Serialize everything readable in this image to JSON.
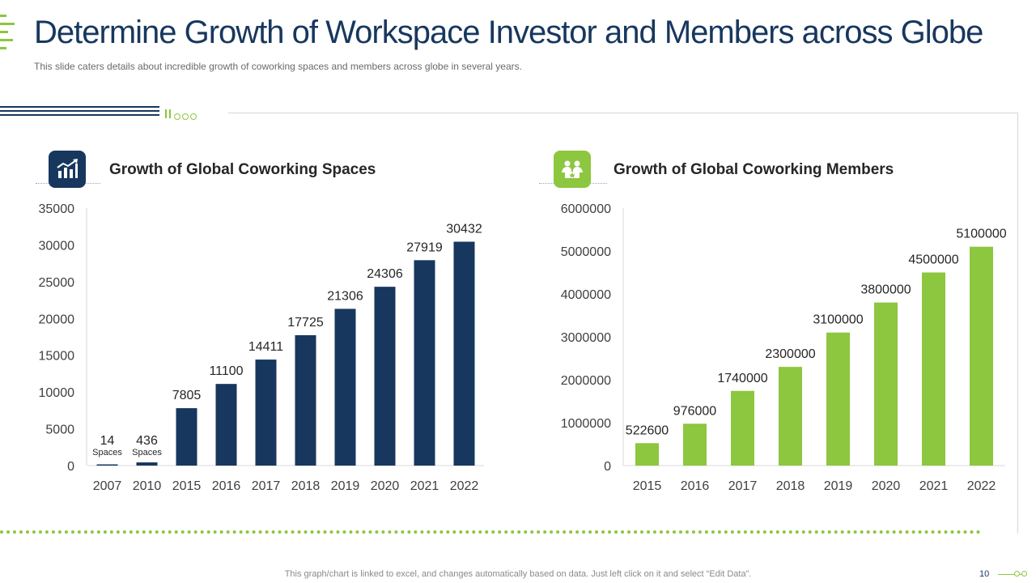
{
  "header": {
    "title": "Determine Growth of Workspace Investor and Members across Globe",
    "subtitle": "This slide caters details about incredible growth of coworking spaces and members across globe in several years."
  },
  "footer": {
    "note": "This graph/chart is linked to excel, and changes automatically based on data. Just left click on it and select “Edit Data”.",
    "page_number": "10"
  },
  "icons": {
    "left": "bar-chart-growth-icon",
    "right": "team-members-icon"
  },
  "colors": {
    "navy": "#17375e",
    "green": "#8dc63f"
  },
  "chart_data": [
    {
      "type": "bar",
      "title": "Growth of Global Coworking Spaces",
      "categories": [
        "2007",
        "2010",
        "2015",
        "2016",
        "2017",
        "2018",
        "2019",
        "2020",
        "2021",
        "2022"
      ],
      "values": [
        14,
        436,
        7805,
        11100,
        14411,
        17725,
        21306,
        24306,
        27919,
        30432
      ],
      "data_labels": [
        "14",
        "436",
        "7805",
        "11100",
        "14411",
        "17725",
        "21306",
        "24306",
        "27919",
        "30432"
      ],
      "label_suffixes": [
        "Spaces",
        "Spaces",
        "",
        "",
        "",
        "",
        "",
        "",
        "",
        ""
      ],
      "yticks": [
        0,
        5000,
        10000,
        15000,
        20000,
        25000,
        30000,
        35000
      ],
      "ylim": [
        0,
        35000
      ],
      "xlabel": "",
      "ylabel": "",
      "color": "#17375e"
    },
    {
      "type": "bar",
      "title": "Growth of Global Coworking Members",
      "categories": [
        "2015",
        "2016",
        "2017",
        "2018",
        "2019",
        "2020",
        "2021",
        "2022"
      ],
      "values": [
        522600,
        976000,
        1740000,
        2300000,
        3100000,
        3800000,
        4500000,
        5100000
      ],
      "data_labels": [
        "522600",
        "976000",
        "1740000",
        "2300000",
        "3100000",
        "3800000",
        "4500000",
        "5100000"
      ],
      "label_suffixes": [
        "",
        "",
        "",
        "",
        "",
        "",
        "",
        ""
      ],
      "yticks": [
        0,
        1000000,
        2000000,
        3000000,
        4000000,
        5000000,
        6000000
      ],
      "ylim": [
        0,
        6000000
      ],
      "xlabel": "",
      "ylabel": "",
      "color": "#8dc63f"
    }
  ]
}
